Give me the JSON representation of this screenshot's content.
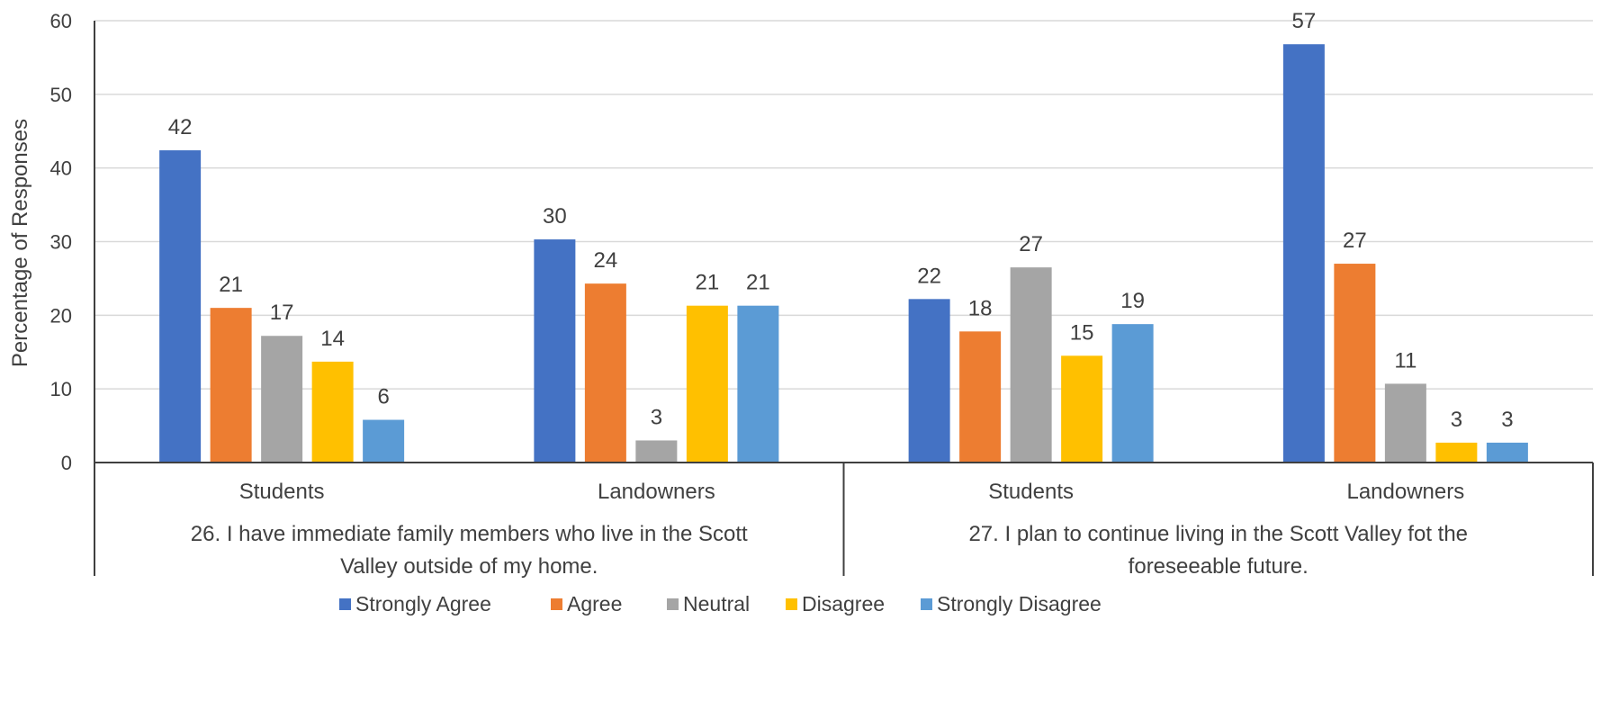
{
  "chart_data": {
    "type": "bar",
    "title": "",
    "ylabel": "Percentage of Responses",
    "ylim": [
      0,
      60
    ],
    "yticks": [
      0,
      10,
      20,
      30,
      40,
      50,
      60
    ],
    "grid": true,
    "legend_position": "bottom",
    "groups": [
      {
        "label": "26. I have immediate family members who live in the Scott Valley outside of my home.",
        "label_lines": [
          "26. I have immediate family members who live in the Scott",
          "Valley outside of my home."
        ],
        "categories": [
          "Students",
          "Landowners"
        ]
      },
      {
        "label": "27. I plan to continue living in the Scott Valley fot the foreseeable future.",
        "label_lines": [
          "27. I plan to continue living in the Scott Valley fot the",
          "foreseeable future."
        ],
        "categories": [
          "Students",
          "Landowners"
        ]
      }
    ],
    "categories": [
      "Students",
      "Landowners",
      "Students",
      "Landowners"
    ],
    "series": [
      {
        "name": "Strongly Agree",
        "color": "#4472C4",
        "values": [
          42.4,
          30.3,
          22.2,
          56.8
        ],
        "labels": [
          "42",
          "30",
          "22",
          "57"
        ]
      },
      {
        "name": "Agree",
        "color": "#ED7D31",
        "values": [
          21.0,
          24.3,
          17.8,
          27.0
        ],
        "labels": [
          "21",
          "24",
          "18",
          "27"
        ]
      },
      {
        "name": "Neutral",
        "color": "#A5A5A5",
        "values": [
          17.2,
          3.0,
          26.5,
          10.7
        ],
        "labels": [
          "17",
          "3",
          "27",
          "11"
        ]
      },
      {
        "name": "Disagree",
        "color": "#FFC000",
        "values": [
          13.7,
          21.3,
          14.5,
          2.7
        ],
        "labels": [
          "14",
          "21",
          "15",
          "3"
        ]
      },
      {
        "name": "Strongly Disagree",
        "color": "#5B9BD5",
        "values": [
          5.8,
          21.3,
          18.8,
          2.7
        ],
        "labels": [
          "6",
          "21",
          "19",
          "3"
        ]
      }
    ]
  }
}
